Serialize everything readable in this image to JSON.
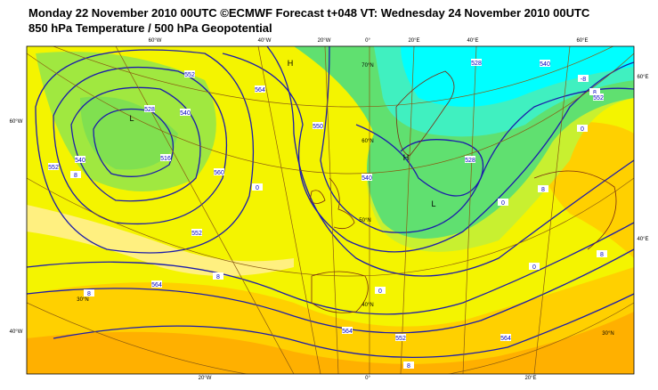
{
  "header": {
    "line1": "Monday 22 November 2010 00UTC ©ECMWF Forecast t+048 VT: Wednesday 24 November 2010 00UTC",
    "line2": "850 hPa Temperature / 500 hPa Geopotential"
  },
  "grid_labels": [
    "60°W",
    "40°W",
    "20°W",
    "0°",
    "20°E",
    "40°E",
    "60°E",
    "60°E",
    "40°E",
    "60°W",
    "40°W",
    "20°W",
    "0°",
    "20°E",
    "70°N",
    "60°N",
    "50°N",
    "40°N",
    "30°N",
    "30°N"
  ],
  "contour_labels": [
    "552",
    "564",
    "528",
    "540",
    "516",
    "552",
    "540",
    "8",
    "560",
    "0",
    "552",
    "550",
    "528",
    "540",
    "8",
    "0",
    "8",
    "564",
    "564",
    "552",
    "0",
    "528",
    "540",
    "8",
    "0",
    "-8",
    "552",
    "8",
    "8",
    "8",
    "564",
    "0"
  ],
  "pressure_centers": [
    "H",
    "L",
    "L",
    "H"
  ]
}
